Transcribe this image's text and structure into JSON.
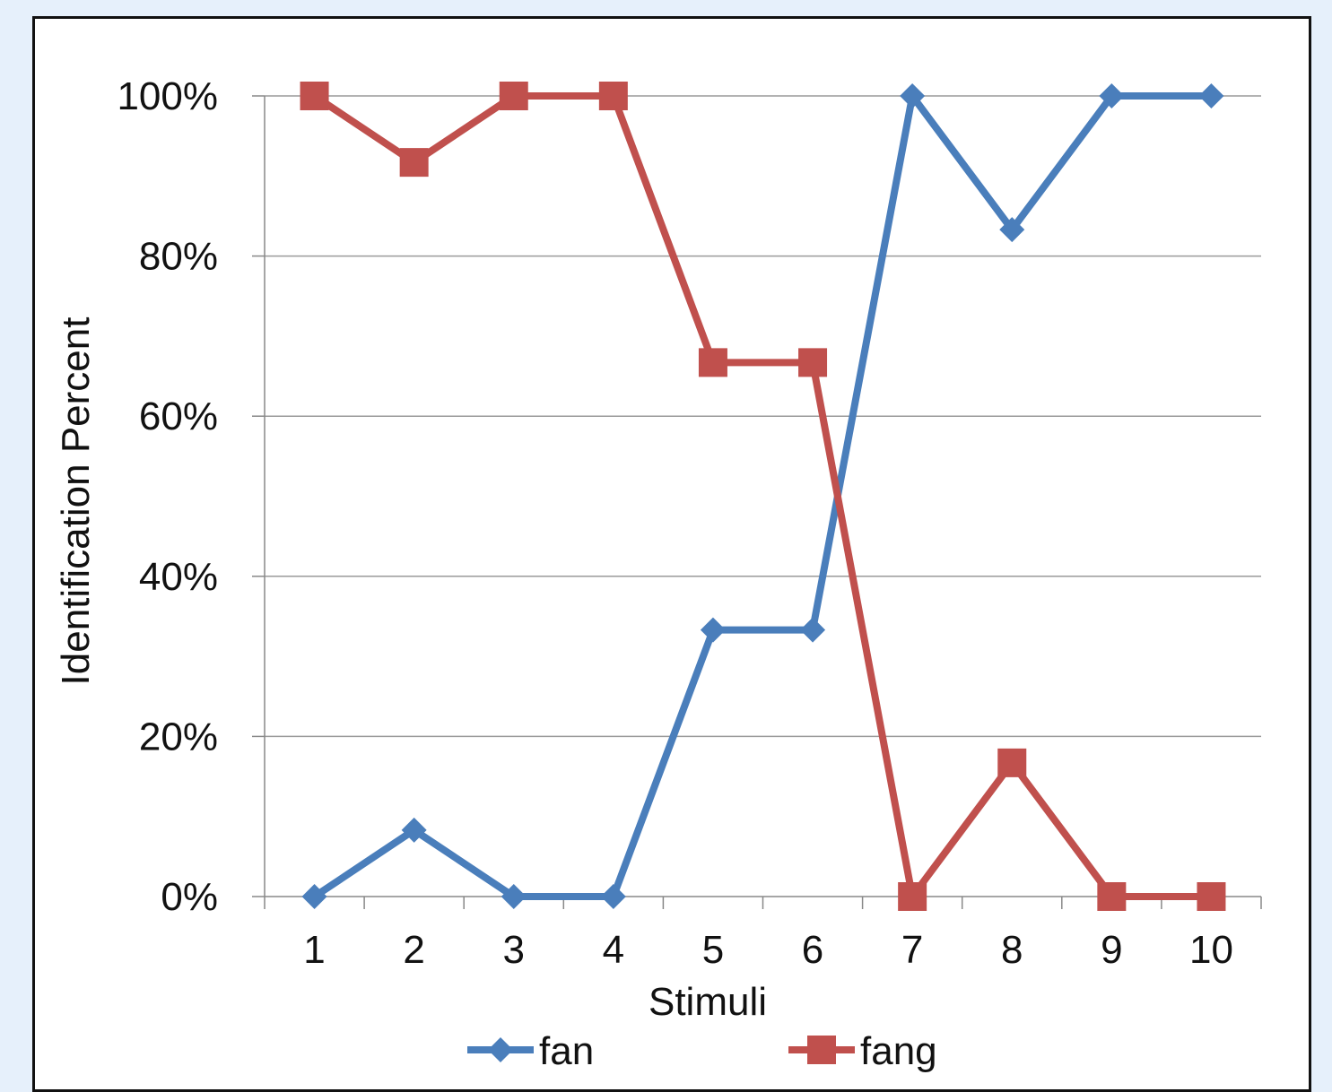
{
  "chart_data": {
    "type": "line",
    "xlabel": "Stimuli",
    "ylabel": "Identification Percent",
    "categories": [
      "1",
      "2",
      "3",
      "4",
      "5",
      "6",
      "7",
      "8",
      "9",
      "10"
    ],
    "ylim": [
      0,
      100
    ],
    "yticks": [
      "0%",
      "20%",
      "40%",
      "60%",
      "80%",
      "100%"
    ],
    "grid": true,
    "legend_position": "bottom",
    "series": [
      {
        "name": "fan",
        "marker": "diamond",
        "color": "#4a7ebb",
        "values": [
          0,
          8.3,
          0,
          0,
          33.3,
          33.3,
          100,
          83.3,
          100,
          100
        ]
      },
      {
        "name": "fang",
        "marker": "square",
        "color": "#c0504d",
        "values": [
          100,
          91.7,
          100,
          100,
          66.7,
          66.7,
          0,
          16.7,
          0,
          0
        ]
      }
    ]
  }
}
